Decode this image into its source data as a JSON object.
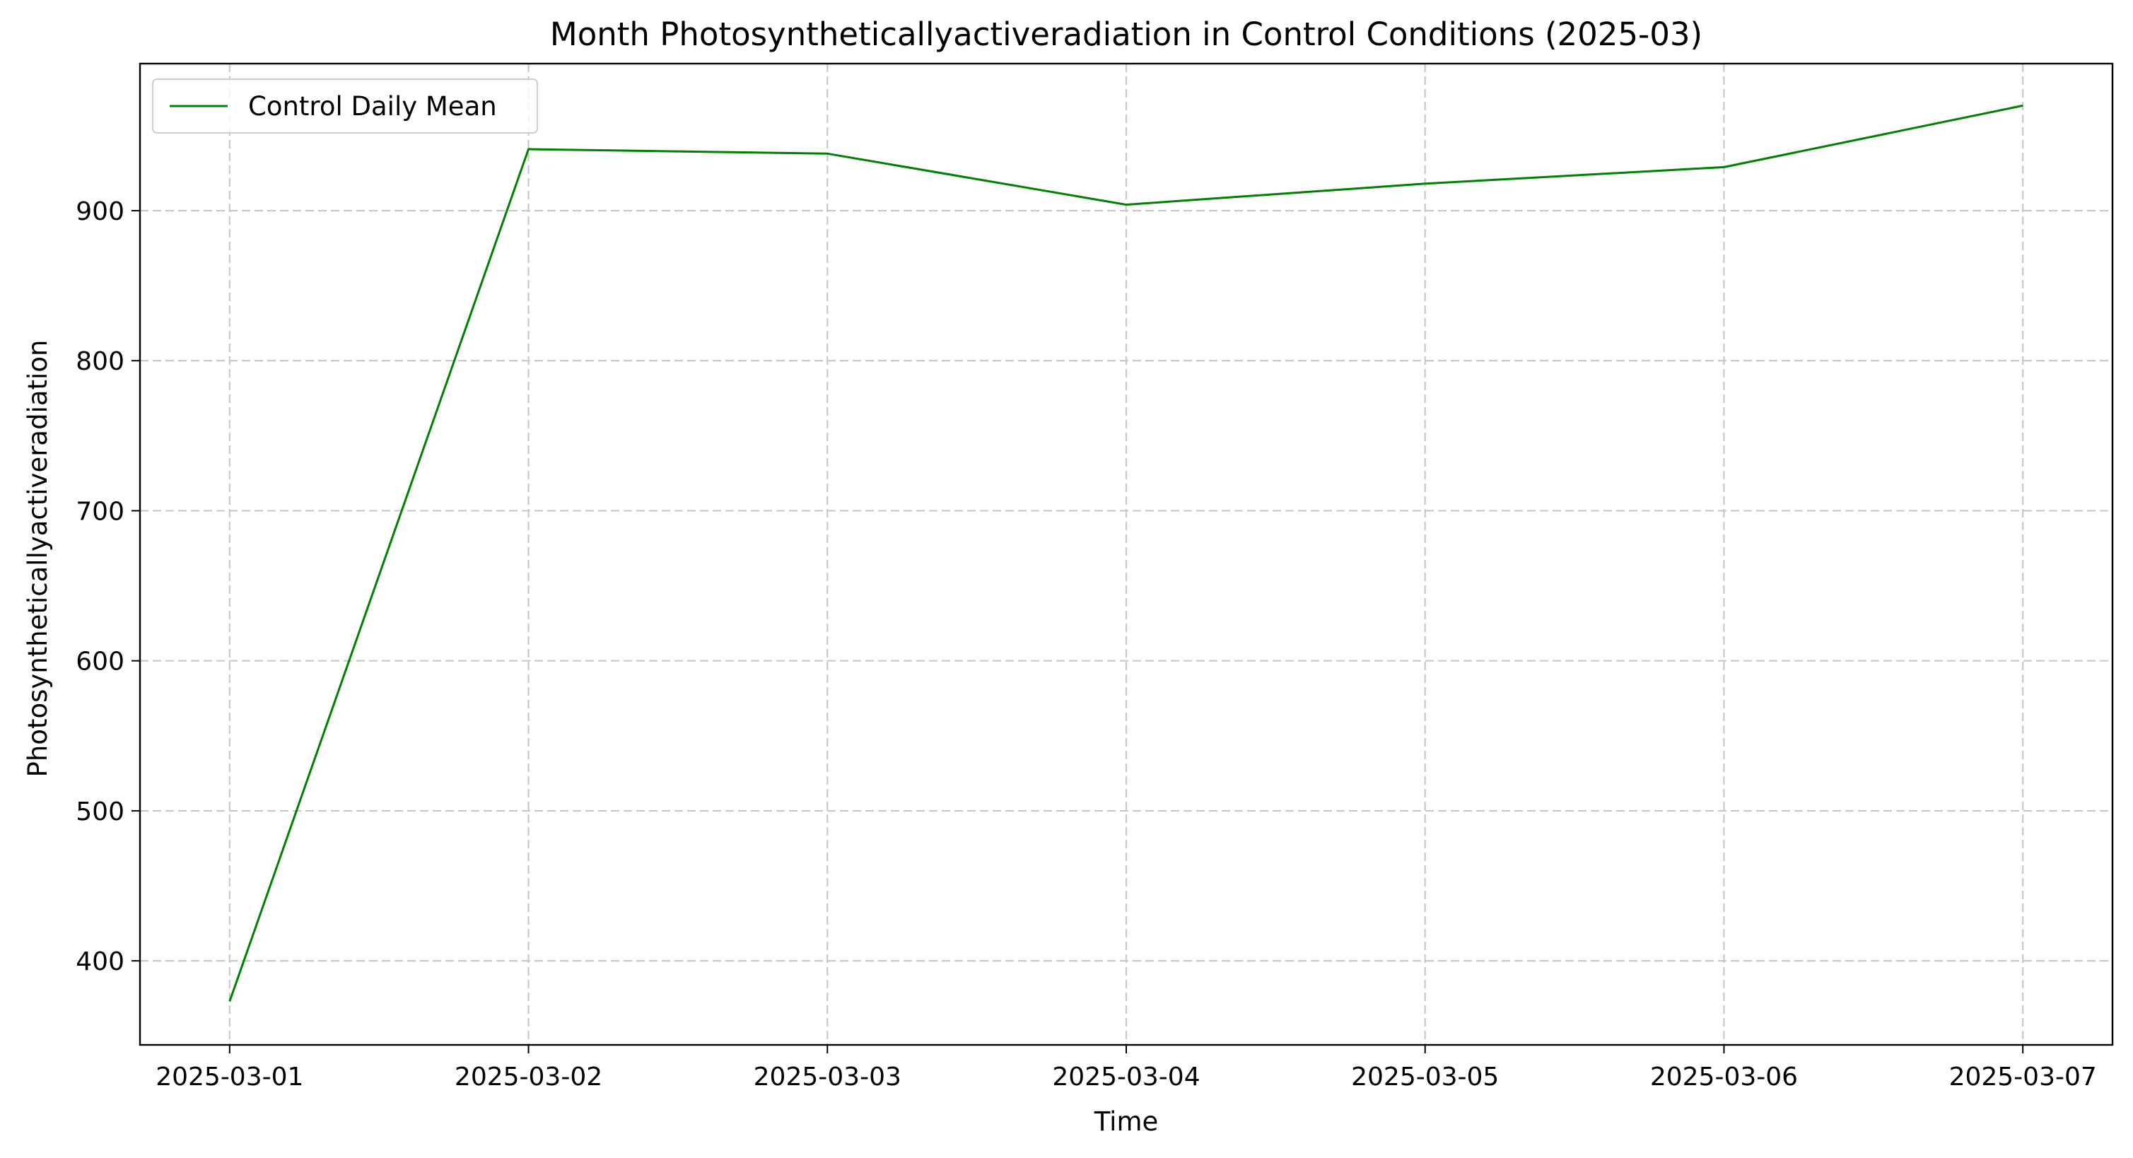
{
  "chart_data": {
    "type": "line",
    "title": "Month Photosyntheticallyactiveradiation in Control Conditions (2025-03)",
    "xlabel": "Time",
    "ylabel": "Photosyntheticallyactiveradiation",
    "x": [
      "2025-03-01",
      "2025-03-02",
      "2025-03-03",
      "2025-03-04",
      "2025-03-05",
      "2025-03-06",
      "2025-03-07"
    ],
    "series": [
      {
        "name": "Control Daily Mean",
        "color": "#008000",
        "values": [
          373,
          941,
          938,
          904,
          918,
          929,
          970
        ]
      }
    ],
    "yticks": [
      400,
      500,
      600,
      700,
      800,
      900
    ],
    "ylim": [
      344,
      998
    ],
    "xlim": [
      "2025-02-28T16:48",
      "2025-03-07T07:12"
    ],
    "grid": true,
    "legend_position": "top-left"
  }
}
